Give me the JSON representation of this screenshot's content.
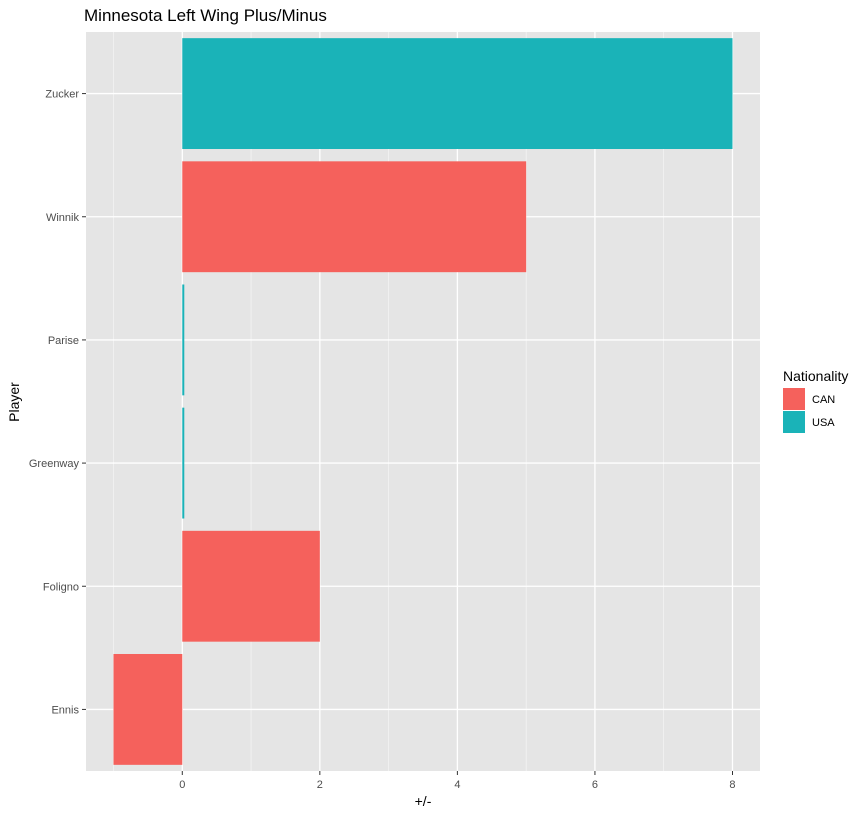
{
  "chart_data": {
    "type": "bar",
    "orientation": "horizontal",
    "title": "Minnesota Left Wing Plus/Minus",
    "xlabel": "+/-",
    "ylabel": "Player",
    "categories": [
      "Ennis",
      "Foligno",
      "Greenway",
      "Parise",
      "Winnik",
      "Zucker"
    ],
    "values": [
      -1,
      2,
      0,
      0,
      5,
      8
    ],
    "group": [
      "CAN",
      "CAN",
      "USA",
      "USA",
      "CAN",
      "USA"
    ],
    "xlim": [
      -1.4,
      8.4
    ],
    "x_ticks": [
      0,
      2,
      4,
      6,
      8
    ],
    "grid": true,
    "legend": {
      "title": "Nationality",
      "position": "right",
      "entries": [
        {
          "label": "CAN",
          "color": "#F8766D"
        },
        {
          "label": "USA",
          "color": "#00BFC4"
        }
      ]
    },
    "colors": {
      "CAN": "#F5615C",
      "USA": "#1AB3B8",
      "panel_background": "#E5E5E5",
      "grid": "#FFFFFF"
    }
  }
}
